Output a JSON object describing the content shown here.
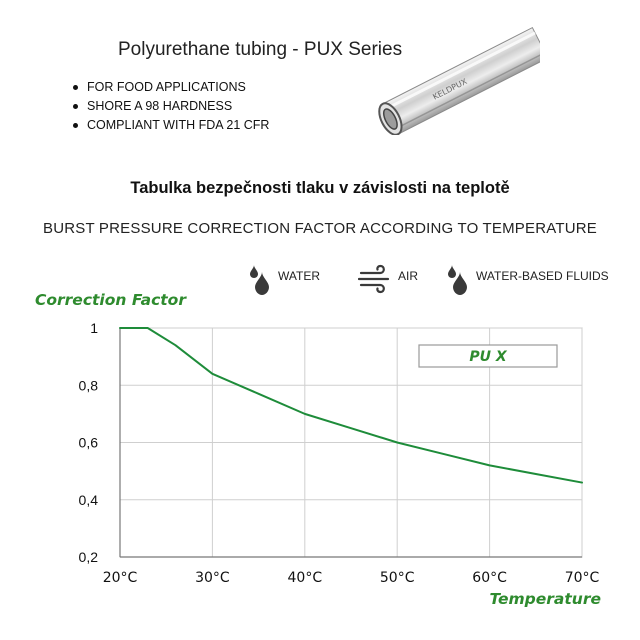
{
  "product": {
    "title": "Polyurethane tubing - PUX Series",
    "features": [
      "FOR FOOD APPLICATIONS",
      "SHORE A 98 HARDNESS",
      "COMPLIANT WITH FDA 21 CFR"
    ],
    "tube_print": "KELDPUX"
  },
  "heading": {
    "czech": "Tabulka bezpečnosti tlaku v závislosti na teplotě",
    "english": "BURST PRESSURE CORRECTION FACTOR ACCORDING TO TEMPERATURE"
  },
  "legend": [
    {
      "label": "WATER",
      "icon": "water-drop-icon"
    },
    {
      "label": "AIR",
      "icon": "air-wind-icon"
    },
    {
      "label": "WATER-BASED FLUIDS",
      "icon": "water-drop-icon"
    }
  ],
  "colors": {
    "accent_green": "#2e8b2e",
    "line_green": "#1e8c3a",
    "icon_gray": "#3a3a3a"
  },
  "chart_data": {
    "type": "line",
    "ylabel": "Correction Factor",
    "xlabel": "Temperature",
    "x_tick_labels": [
      "20°C",
      "30°C",
      "40°C",
      "50°C",
      "60°C",
      "70°C"
    ],
    "y_tick_labels": [
      "0,2",
      "0,4",
      "0,6",
      "0,8",
      "1"
    ],
    "xlim": [
      20,
      70
    ],
    "ylim": [
      0.2,
      1.0
    ],
    "grid": true,
    "legend_box": "PU X",
    "series": [
      {
        "name": "PU X",
        "x": [
          20,
          23,
          26,
          30,
          35,
          40,
          45,
          50,
          55,
          60,
          65,
          70
        ],
        "y": [
          1.0,
          1.0,
          0.94,
          0.84,
          0.77,
          0.7,
          0.65,
          0.6,
          0.56,
          0.52,
          0.49,
          0.46
        ]
      }
    ]
  }
}
